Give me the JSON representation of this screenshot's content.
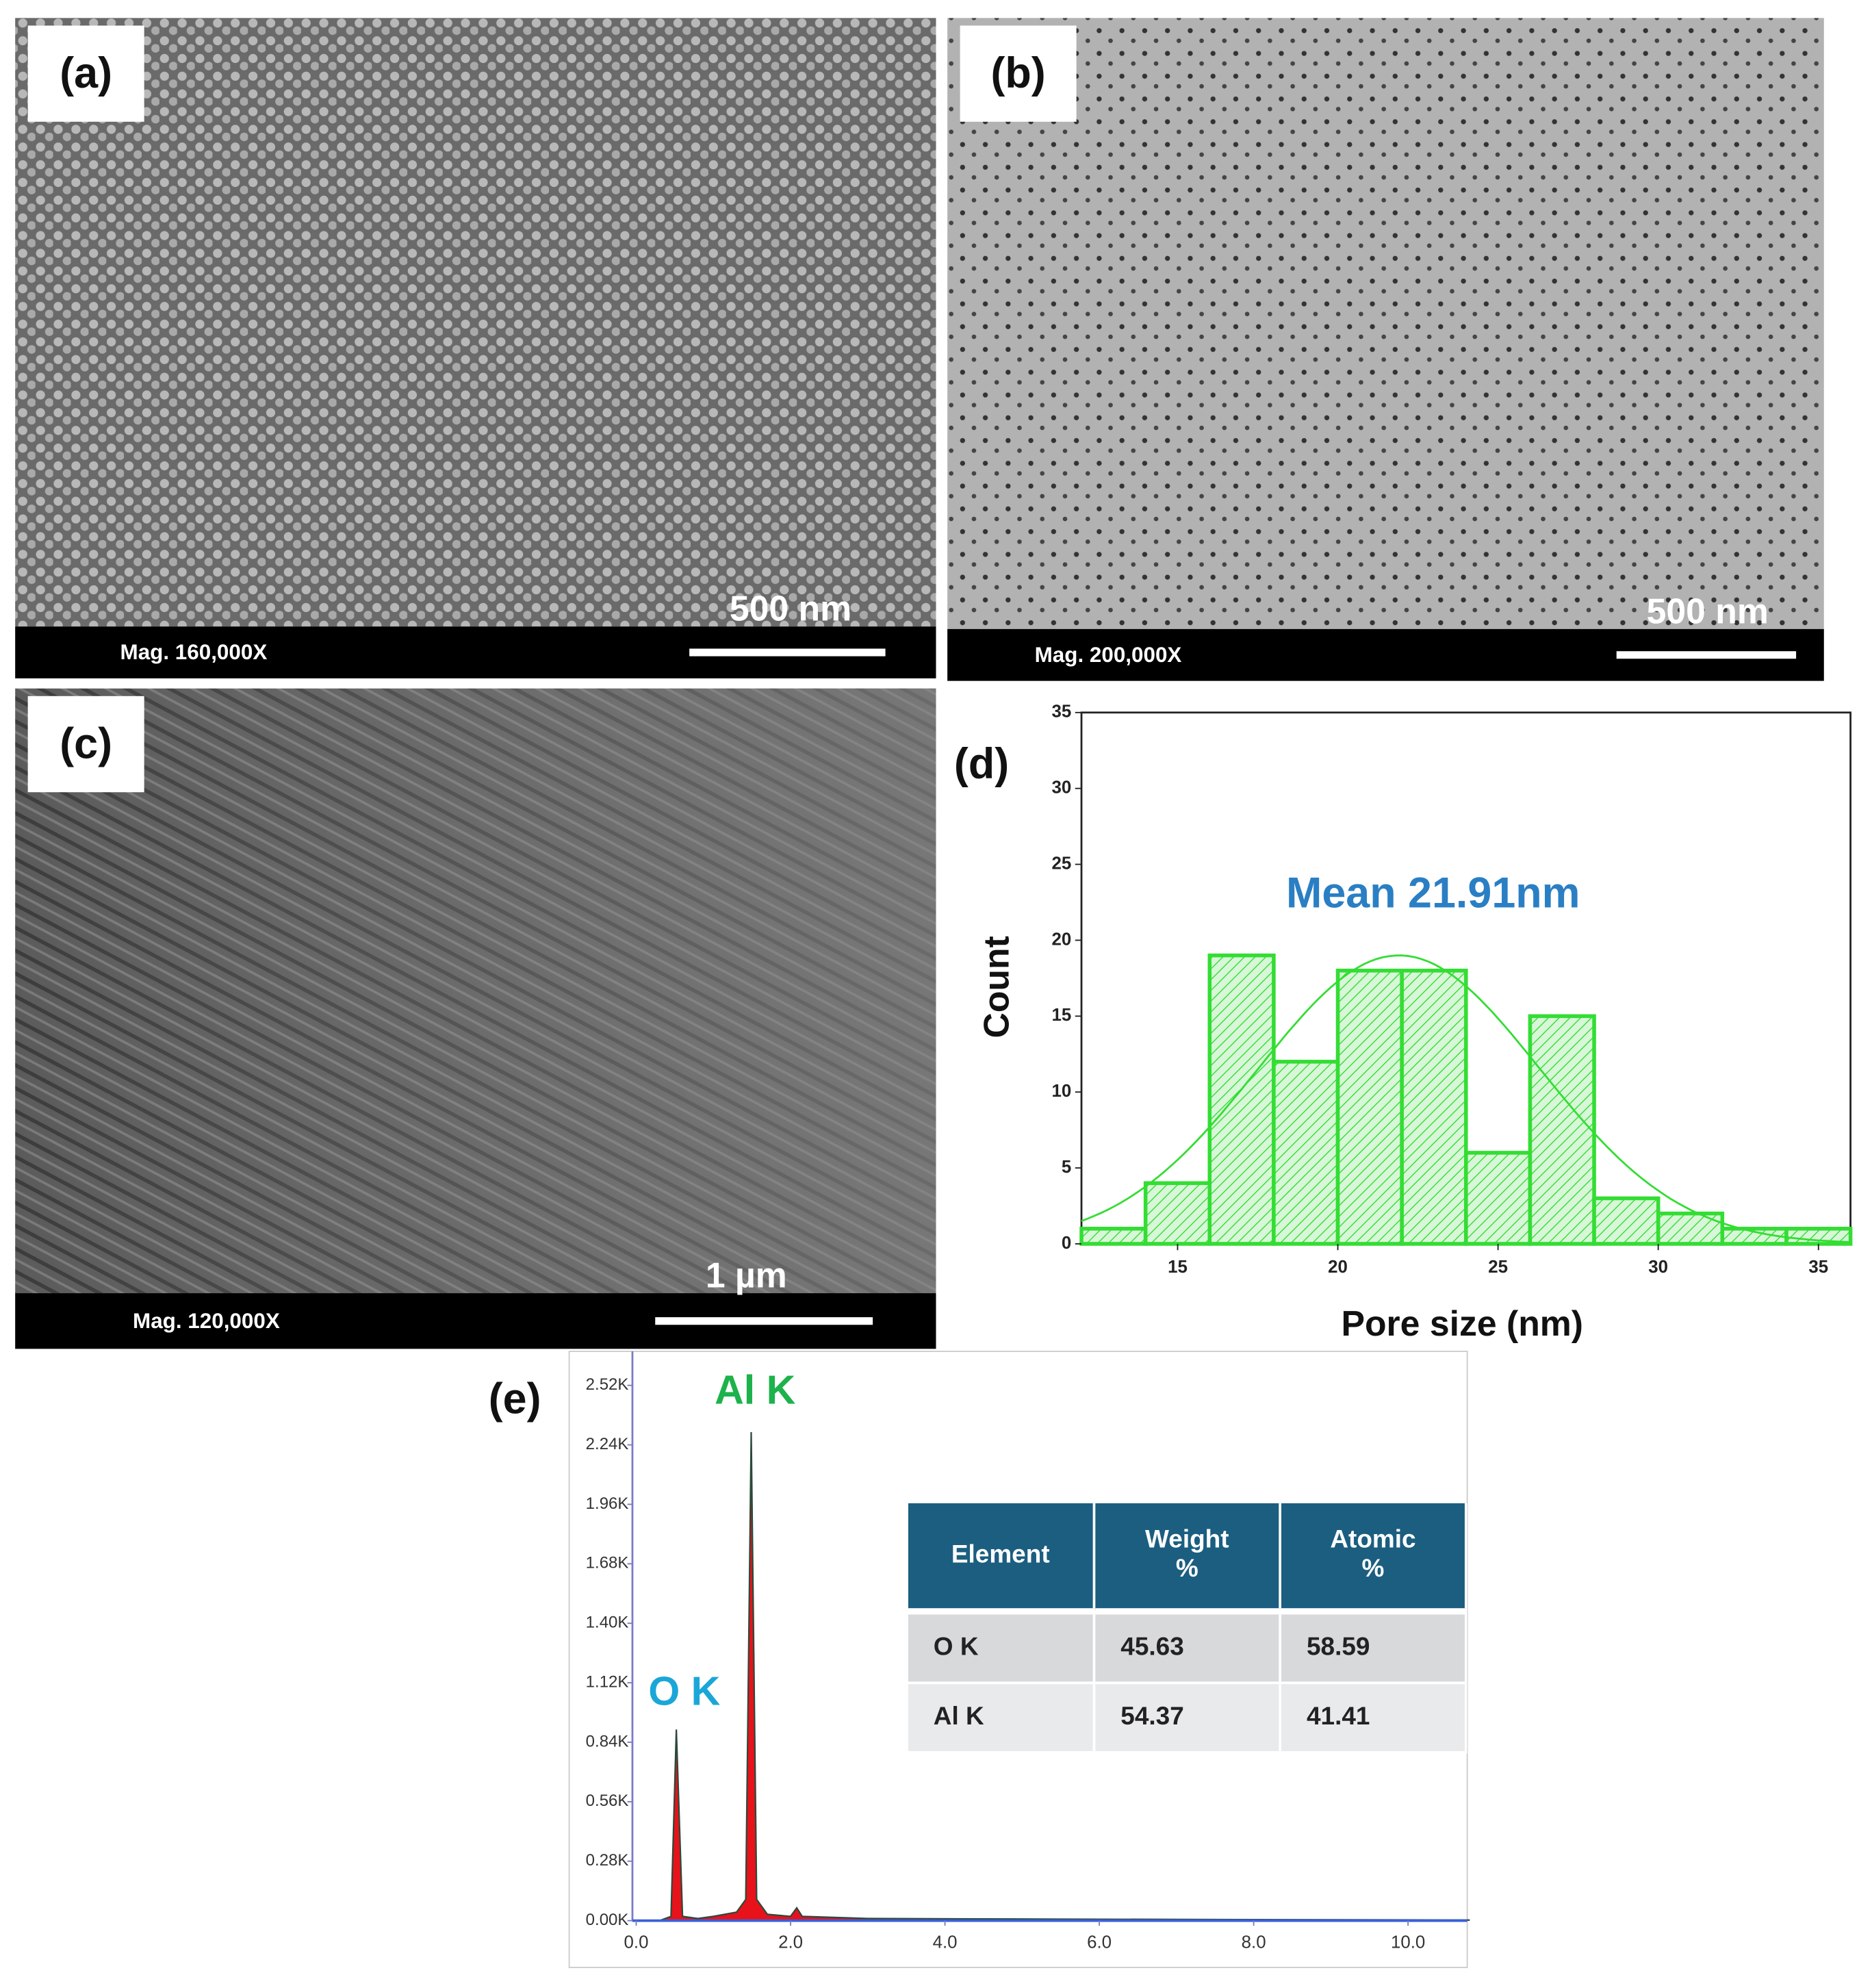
{
  "panels": [
    {
      "label": "(a)",
      "magnification": "Mag. 160,000X",
      "scale_bar": "500 nm"
    },
    {
      "label": "(b)",
      "magnification": "Mag. 200,000X",
      "scale_bar": "500 nm"
    },
    {
      "label": "(c)",
      "magnification": "Mag. 120,000X",
      "scale_bar": "1 µm"
    }
  ],
  "chart_data": [
    {
      "type": "histogram",
      "label": "(d)",
      "x_label": "Pore size (nm)",
      "y_label": "Count",
      "annotation": "Mean 21.91nm",
      "bins": [
        12,
        14,
        16,
        18,
        20,
        22,
        24,
        26,
        28,
        30,
        32,
        34,
        36
      ],
      "values": [
        1,
        4,
        19,
        12,
        18,
        18,
        6,
        15,
        3,
        2,
        1,
        1
      ],
      "color": "#33dd33",
      "xlim": [
        12,
        36
      ],
      "xticks": [
        15,
        20,
        25,
        30,
        35
      ],
      "ylim": [
        0,
        35
      ],
      "yticks": [
        0,
        5,
        10,
        15,
        20,
        25,
        30,
        35
      ],
      "fit": {
        "mean": 21.91,
        "sd": 4.4,
        "peak": 19
      }
    },
    {
      "type": "area",
      "label": "(e)",
      "x": [
        0.3,
        0.45,
        0.52,
        0.6,
        0.8,
        1.0,
        1.3,
        1.42,
        1.49,
        1.56,
        1.7,
        2.0,
        2.08,
        2.15,
        3.0,
        5.0,
        8.0,
        10.8
      ],
      "values": [
        0,
        20,
        900,
        20,
        10,
        20,
        40,
        100,
        2300,
        100,
        30,
        20,
        60,
        20,
        10,
        8,
        5,
        3
      ],
      "color": "#e8121b",
      "peak_labels": [
        {
          "text": "O K",
          "color": "#1aa7d8"
        },
        {
          "text": "Al K",
          "color": "#1db24b"
        }
      ],
      "xlim": [
        0,
        10.8
      ],
      "xticks": [
        {
          "value": 0,
          "label": "0.0"
        },
        {
          "value": 2,
          "label": "2.0"
        },
        {
          "value": 4,
          "label": "4.0"
        },
        {
          "value": 6,
          "label": "6.0"
        },
        {
          "value": 8,
          "label": "8.0"
        },
        {
          "value": 10,
          "label": "10.0"
        }
      ],
      "ylim": [
        0,
        2680
      ],
      "yticks": [
        {
          "value": 0,
          "label": "0.00K"
        },
        {
          "value": 280,
          "label": "0.28K"
        },
        {
          "value": 560,
          "label": "0.56K"
        },
        {
          "value": 840,
          "label": "0.84K"
        },
        {
          "value": 1120,
          "label": "1.12K"
        },
        {
          "value": 1400,
          "label": "1.40K"
        },
        {
          "value": 1680,
          "label": "1.68K"
        },
        {
          "value": 1960,
          "label": "1.96K"
        },
        {
          "value": 2240,
          "label": "2.24K"
        },
        {
          "value": 2520,
          "label": "2.52K"
        }
      ]
    }
  ],
  "table": {
    "header": [
      "Element",
      "Weight %",
      "Atomic %"
    ],
    "rows": [
      [
        "O K",
        45.63,
        58.59
      ],
      [
        "Al K",
        54.37,
        41.41
      ]
    ]
  }
}
